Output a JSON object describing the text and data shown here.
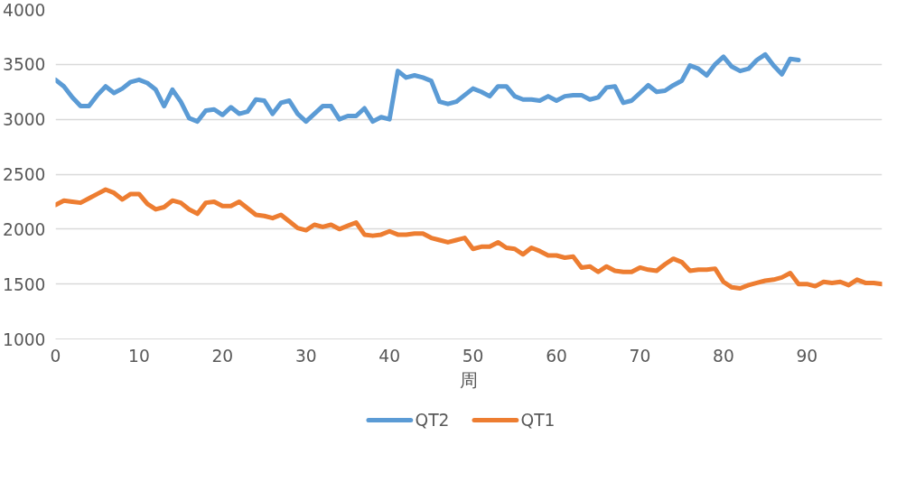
{
  "chart_data": {
    "type": "line",
    "xlabel": "周",
    "xlim": [
      0,
      99
    ],
    "xticks": [
      0,
      10,
      20,
      30,
      40,
      50,
      60,
      70,
      80,
      90
    ],
    "ylim": [
      1000,
      4000
    ],
    "yticks": [
      1000,
      1500,
      2000,
      2500,
      3000,
      3500,
      4000
    ],
    "grid": "y",
    "legend": "bottom",
    "marker": "none",
    "line_style": "solid",
    "series": [
      {
        "name": "QT2",
        "color": "#5b9bd5",
        "x": [
          0,
          1,
          2,
          3,
          4,
          5,
          6,
          7,
          8,
          9,
          10,
          11,
          12,
          13,
          14,
          15,
          16,
          17,
          18,
          19,
          20,
          21,
          22,
          23,
          24,
          25,
          26,
          27,
          28,
          29,
          30,
          31,
          32,
          33,
          34,
          35,
          36,
          37,
          38,
          39,
          40,
          41,
          42,
          43,
          44,
          45,
          46,
          47,
          48,
          49,
          50,
          51,
          52,
          53,
          54,
          55,
          56,
          57,
          58,
          59,
          60,
          61,
          62,
          63,
          64,
          65,
          66,
          67,
          68,
          69,
          70,
          71,
          72,
          73,
          74,
          75,
          76,
          77,
          78,
          79,
          80,
          81,
          82,
          83,
          84,
          85,
          86,
          87,
          88,
          89
        ],
        "values": [
          3360,
          3300,
          3200,
          3120,
          3120,
          3220,
          3300,
          3240,
          3280,
          3340,
          3360,
          3330,
          3270,
          3120,
          3270,
          3160,
          3010,
          2980,
          3080,
          3090,
          3040,
          3110,
          3050,
          3070,
          3180,
          3170,
          3050,
          3150,
          3170,
          3050,
          2980,
          3050,
          3120,
          3120,
          3000,
          3030,
          3030,
          3100,
          2980,
          3020,
          3000,
          3440,
          3380,
          3400,
          3380,
          3350,
          3160,
          3140,
          3160,
          3220,
          3280,
          3250,
          3210,
          3300,
          3300,
          3210,
          3180,
          3180,
          3170,
          3210,
          3170,
          3210,
          3220,
          3220,
          3180,
          3200,
          3290,
          3300,
          3150,
          3170,
          3240,
          3310,
          3250,
          3260,
          3310,
          3350,
          3490,
          3460,
          3400,
          3500,
          3570,
          3480,
          3440,
          3460,
          3540,
          3590,
          3490,
          3410,
          3550,
          3540
        ]
      },
      {
        "name": "QT1",
        "color": "#ed7d31",
        "x": [
          0,
          1,
          2,
          3,
          4,
          5,
          6,
          7,
          8,
          9,
          10,
          11,
          12,
          13,
          14,
          15,
          16,
          17,
          18,
          19,
          20,
          21,
          22,
          23,
          24,
          25,
          26,
          27,
          28,
          29,
          30,
          31,
          32,
          33,
          34,
          35,
          36,
          37,
          38,
          39,
          40,
          41,
          42,
          43,
          44,
          45,
          46,
          47,
          48,
          49,
          50,
          51,
          52,
          53,
          54,
          55,
          56,
          57,
          58,
          59,
          60,
          61,
          62,
          63,
          64,
          65,
          66,
          67,
          68,
          69,
          70,
          71,
          72,
          73,
          74,
          75,
          76,
          77,
          78,
          79,
          80,
          81,
          82,
          83,
          84,
          85,
          86,
          87,
          88,
          89,
          90,
          91,
          92,
          93,
          94,
          95,
          96,
          97,
          98,
          99
        ],
        "values": [
          2220,
          2260,
          2250,
          2240,
          2280,
          2320,
          2360,
          2330,
          2270,
          2320,
          2320,
          2230,
          2180,
          2200,
          2260,
          2240,
          2180,
          2140,
          2240,
          2250,
          2210,
          2210,
          2250,
          2190,
          2130,
          2120,
          2100,
          2130,
          2070,
          2010,
          1990,
          2040,
          2020,
          2040,
          2000,
          2030,
          2060,
          1950,
          1940,
          1950,
          1980,
          1950,
          1950,
          1960,
          1960,
          1920,
          1900,
          1880,
          1900,
          1920,
          1820,
          1840,
          1840,
          1880,
          1830,
          1820,
          1770,
          1830,
          1800,
          1760,
          1760,
          1740,
          1750,
          1650,
          1660,
          1610,
          1660,
          1620,
          1610,
          1610,
          1650,
          1630,
          1620,
          1680,
          1730,
          1700,
          1620,
          1630,
          1630,
          1640,
          1520,
          1470,
          1460,
          1490,
          1510,
          1530,
          1540,
          1560,
          1600,
          1500,
          1500,
          1480,
          1520,
          1510,
          1520,
          1490,
          1540,
          1510,
          1510,
          1500
        ]
      }
    ]
  }
}
